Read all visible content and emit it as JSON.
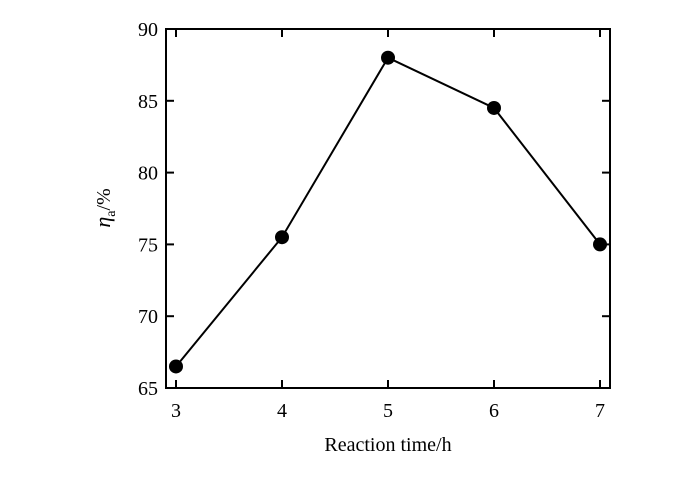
{
  "chart_data": {
    "type": "line",
    "title": "",
    "xlabel": "Reaction time/h",
    "ylabel": {
      "symbol": "η",
      "subscript": "a",
      "suffix": "/%"
    },
    "x": [
      3,
      4,
      5,
      6,
      7
    ],
    "series": [
      {
        "values": [
          66.5,
          75.5,
          88,
          84.5,
          75
        ]
      }
    ],
    "xlim": [
      3,
      7
    ],
    "ylim": [
      65,
      90
    ],
    "xticks": [
      3,
      4,
      5,
      6,
      7
    ],
    "yticks": [
      65,
      70,
      75,
      80,
      85,
      90
    ],
    "grid": false,
    "legend": "none",
    "colors": {
      "line": "#000000",
      "marker": "#000000",
      "axis": "#000000"
    },
    "marker": "filled-circle"
  }
}
